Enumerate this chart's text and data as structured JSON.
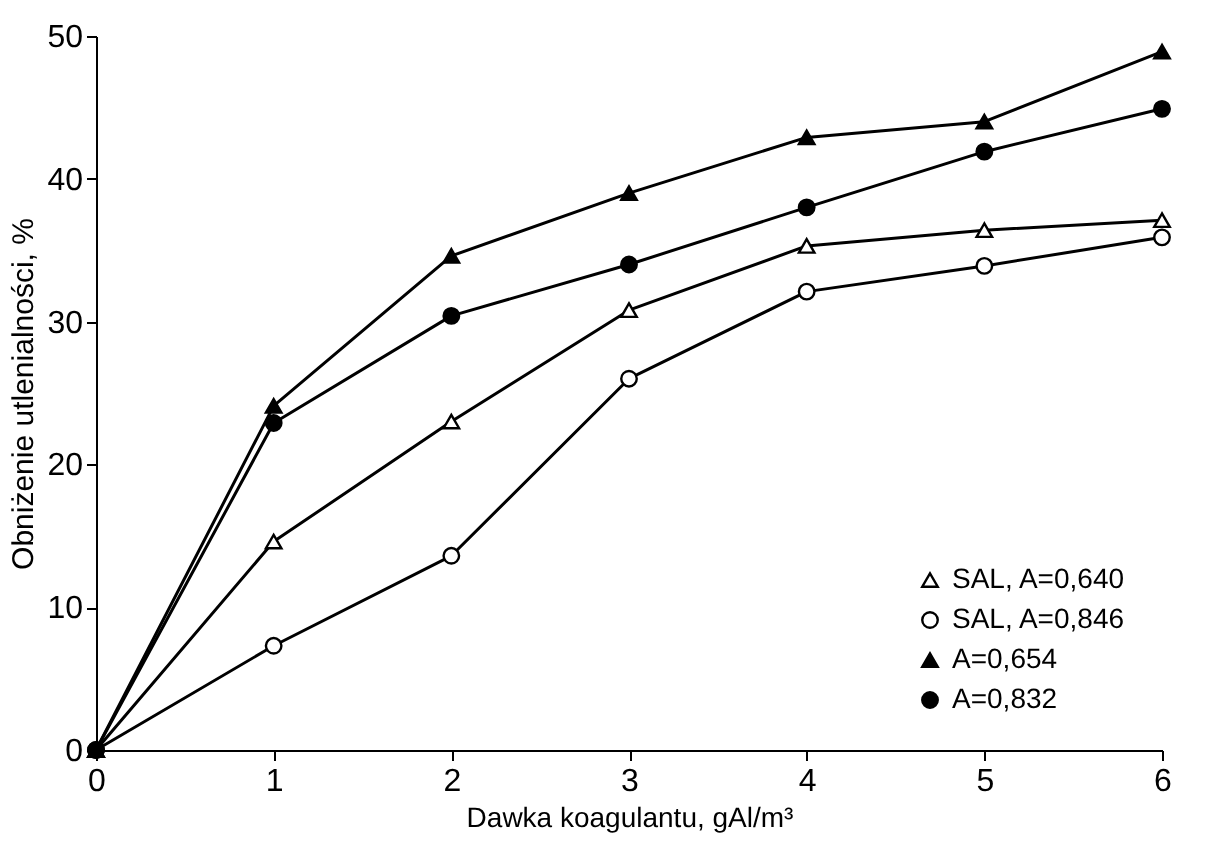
{
  "chart_data": {
    "type": "line",
    "xlabel": "Dawka koagulantu, gAl/m³",
    "ylabel": "Obniżenie utlenialności, %",
    "x": [
      0,
      1,
      2,
      3,
      4,
      5,
      6
    ],
    "xlim": [
      0,
      6
    ],
    "xticks": [
      0,
      1,
      2,
      3,
      4,
      5,
      6
    ],
    "ylim": [
      0,
      50
    ],
    "yticks": [
      0,
      10,
      20,
      30,
      40,
      50
    ],
    "grid": false,
    "legend": "bottom right",
    "line_style": "solid",
    "series": [
      {
        "name": "SAL, A=0,640",
        "color": "#000000",
        "marker": "triangle",
        "colors": [
          "#ffffff",
          "#ffffff",
          "#ffffff",
          "#ffffff",
          "#ffffff",
          "#ffffff",
          "#ffffff"
        ],
        "values": [
          0,
          14.6,
          23,
          30.8,
          35.3,
          36.4,
          37.1
        ]
      },
      {
        "name": "SAL, A=0,846",
        "color": "#000000",
        "marker": "circle",
        "colors": [
          "#ffffff",
          "#ffffff",
          "#ffffff",
          "#ffffff",
          "#ffffff",
          "#ffffff",
          "#ffffff"
        ],
        "values": [
          0,
          7.3,
          13.6,
          26,
          32.1,
          33.9,
          35.9
        ]
      },
      {
        "name": "A=0,654",
        "color": "#000000",
        "marker": "triangle",
        "colors": [
          "#000000",
          "#000000",
          "#000000",
          "#000000",
          "#000000",
          "#000000",
          "#000000"
        ],
        "values": [
          0,
          24.1,
          34.6,
          39,
          42.9,
          44,
          48.9
        ]
      },
      {
        "name": "A=0,832",
        "color": "#000000",
        "marker": "circle",
        "colors": [
          "#000000",
          "#000000",
          "#000000",
          "#000000",
          "#000000",
          "#000000",
          "#000000"
        ],
        "values": [
          0,
          22.9,
          30.4,
          34,
          38,
          41.9,
          44.9
        ]
      }
    ]
  }
}
